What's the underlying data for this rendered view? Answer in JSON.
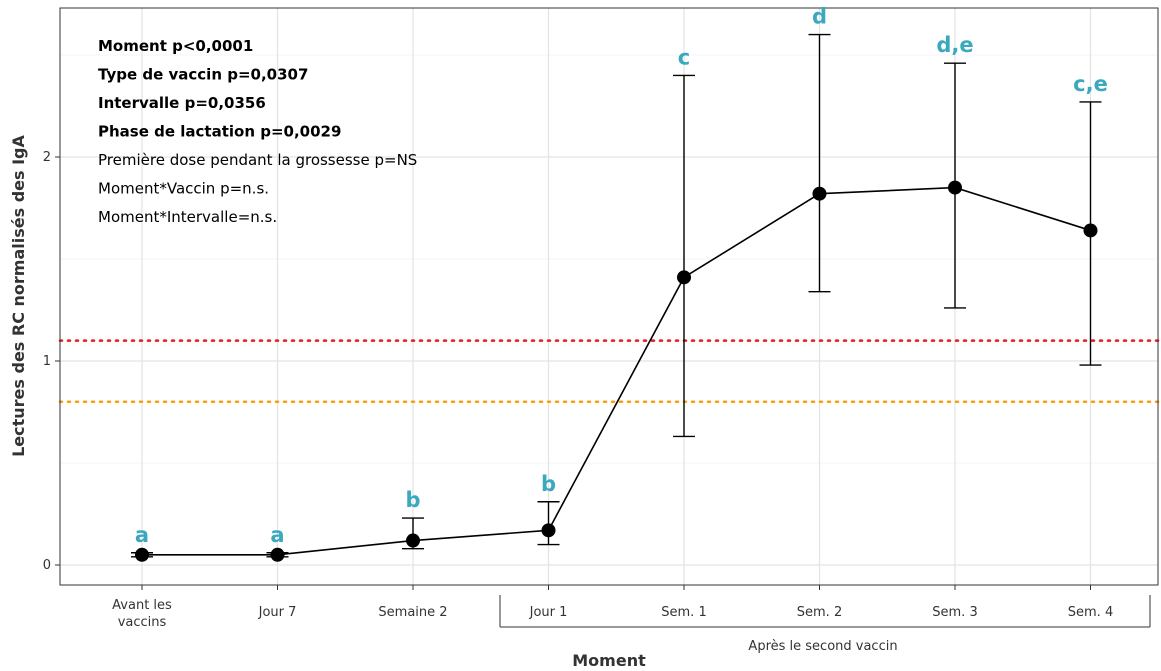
{
  "chart_data": {
    "type": "line",
    "xlabel": "Moment",
    "ylabel": "Lectures des RC normalisés des IgA",
    "categories": [
      "Avant les vaccins",
      "Jour 7",
      "Semaine 2",
      "Jour 1",
      "Sem. 1",
      "Sem. 2",
      "Sem. 3",
      "Sem. 4"
    ],
    "x_group": {
      "label": "Après le second vaccin",
      "from": "Jour 1",
      "to": "Sem. 4"
    },
    "series": [
      {
        "values": [
          0.05,
          0.05,
          0.12,
          0.17,
          1.41,
          1.82,
          1.85,
          1.64
        ],
        "error_low": [
          0.04,
          0.04,
          0.08,
          0.1,
          0.63,
          1.34,
          1.26,
          0.98
        ],
        "error_high": [
          0.06,
          0.06,
          0.23,
          0.31,
          2.4,
          2.6,
          2.46,
          2.27
        ],
        "sig_letters": [
          "a",
          "a",
          "b",
          "b",
          "c",
          "d",
          "d,e",
          "c,e"
        ],
        "color": "#000000"
      }
    ],
    "ylim": [
      -0.08,
      2.75
    ],
    "yticks": [
      0,
      1,
      2
    ],
    "grid": true,
    "reference_lines": [
      {
        "y": 1.1,
        "color": "#e8191f",
        "style": "dotted"
      },
      {
        "y": 0.8,
        "color": "#f4a012",
        "style": "dotted"
      }
    ],
    "annotations": [
      {
        "text": "Moment p<0,0001",
        "bold": true
      },
      {
        "text": "Type de vaccin p=0,0307",
        "bold": true
      },
      {
        "text": "Intervalle p=0,0356",
        "bold": true
      },
      {
        "text": "Phase de lactation p=0,0029",
        "bold": true
      },
      {
        "text": "Première dose pendant la grossesse p=NS",
        "bold": false
      },
      {
        "text": "Moment*Vaccin p=n.s.",
        "bold": false
      },
      {
        "text": "Moment*Intervalle=n.s.",
        "bold": false
      }
    ],
    "sig_letter_color": "#3aa8bd"
  }
}
